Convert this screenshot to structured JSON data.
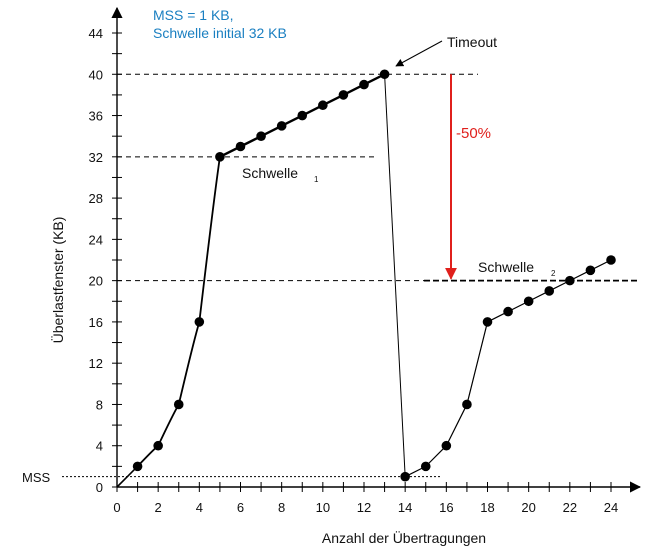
{
  "chart_data": {
    "type": "line",
    "title": "",
    "xlabel": "Anzahl der Übertragungen",
    "ylabel": "Überlastfenster (KB)",
    "xlim": [
      0,
      24
    ],
    "ylim": [
      0,
      44
    ],
    "x_ticks": [
      0,
      2,
      4,
      6,
      8,
      10,
      12,
      14,
      16,
      18,
      20,
      22,
      24
    ],
    "y_ticks": [
      0,
      4,
      8,
      12,
      16,
      20,
      24,
      28,
      32,
      36,
      40,
      44
    ],
    "series": [
      {
        "x": [
          1,
          2,
          3,
          4,
          5,
          6,
          7,
          8,
          9,
          10,
          11,
          12,
          13
        ],
        "y": [
          2,
          4,
          8,
          16,
          32,
          33,
          34,
          35,
          36,
          37,
          38,
          39,
          40
        ]
      },
      {
        "x": [
          14,
          15,
          16,
          17,
          18,
          19,
          20,
          21,
          22,
          23,
          24
        ],
        "y": [
          1,
          2,
          4,
          8,
          16,
          17,
          18,
          19,
          20,
          21,
          22
        ]
      }
    ],
    "reference_lines": [
      {
        "y": 1,
        "label": "MSS"
      },
      {
        "y": 32,
        "label": "Schwelle",
        "subscript": "1"
      },
      {
        "y": 20,
        "label": "Schwelle",
        "subscript": "2"
      },
      {
        "y": 40,
        "label": ""
      }
    ],
    "annotations": {
      "info_line1": "MSS = 1 KB,",
      "info_line2": "Schwelle initial 32 KB",
      "timeout": "Timeout",
      "reduction": "-50%",
      "schwelle1_label": "Schwelle",
      "schwelle1_sub": "1",
      "schwelle2_label": "Schwelle",
      "schwelle2_sub": "2",
      "mss_label": "MSS"
    },
    "colors": {
      "info_text": "#1a7fc1",
      "reduction_arrow": "#e0201c",
      "lines": "#000000"
    },
    "grid": false
  }
}
